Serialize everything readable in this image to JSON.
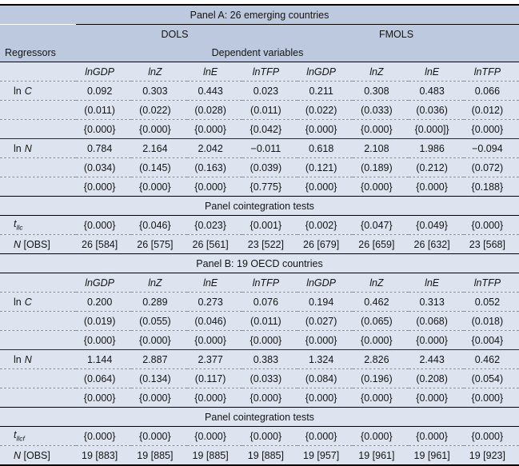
{
  "colors": {
    "header_band": "#bdc9de",
    "row_bg": "#dde3ef",
    "rule": "#000000",
    "dashed": "#8f8f8f",
    "text": "#141414"
  },
  "panelA": {
    "title": "Panel A: 26 emerging countries",
    "methods": [
      "DOLS",
      "FMOLS"
    ],
    "regressors_label": "Regressors",
    "depvars_label": "Dependent variables",
    "columns": [
      "lnGDP",
      "lnZ",
      "lnE",
      "lnTFP",
      "lnGDP",
      "lnZ",
      "lnE",
      "lnTFP"
    ],
    "lnC": {
      "prefix": "ln",
      "symbol": "C",
      "coef": [
        "0.092",
        "0.303",
        "0.443",
        "0.023",
        "0.211",
        "0.308",
        "0.483",
        "0.066"
      ],
      "se": [
        "(0.011)",
        "(0.022)",
        "(0.028)",
        "(0.011)",
        "(0.022)",
        "(0.033)",
        "(0.036)",
        "(0.012)"
      ],
      "p": [
        "{0.000}",
        "{0.000}",
        "{0.000}",
        "{0.042}",
        "{0.000}",
        "{0.000}",
        "{0.000]}",
        "{0.000}"
      ]
    },
    "lnN": {
      "prefix": "ln",
      "symbol": "N",
      "coef": [
        "0.784",
        "2.164",
        "2.042",
        "−0.011",
        "0.618",
        "2.108",
        "1.986",
        "−0.094"
      ],
      "se": [
        "(0.034)",
        "(0.145)",
        "(0.163)",
        "(0.039)",
        "(0.121)",
        "(0.189)",
        "(0.212)",
        "(0.072)"
      ],
      "p": [
        "{0.000}",
        "{0.000}",
        "{0.000}",
        "{0.775}",
        "{0.000}",
        "{0.000}",
        "{0.000}",
        "{0.188}"
      ]
    },
    "coint_title": "Panel cointegration tests",
    "tstat": {
      "base": "t",
      "sub": "llc",
      "values": [
        "{0.000}",
        "{0.046}",
        "{0.023}",
        "{0.001}",
        "{0.002}",
        "{0.047}",
        "{0.049}",
        "{0.000}"
      ]
    },
    "obs": {
      "labelN": "N",
      "labelRest": " [OBS]",
      "values": [
        "26 [584]",
        "26 [575]",
        "26 [561]",
        "23 [522]",
        "26 [679]",
        "26 [659]",
        "26 [632]",
        "23 [568]"
      ]
    }
  },
  "panelB": {
    "title": "Panel B: 19 OECD countries",
    "columns": [
      "lnGDP",
      "lnZ",
      "lnE",
      "lnTFP",
      "lnGDP",
      "lnZ",
      "lnE",
      "lnTFP"
    ],
    "lnC": {
      "prefix": "ln",
      "symbol": "C",
      "coef": [
        "0.200",
        "0.289",
        "0.273",
        "0.076",
        "0.194",
        "0.462",
        "0.313",
        "0.052"
      ],
      "se": [
        "(0.019)",
        "(0.055)",
        "(0.046)",
        "(0.011)",
        "(0.027)",
        "(0.065)",
        "(0.068)",
        "(0.018)"
      ],
      "p": [
        "{0.000}",
        "{0.000}",
        "{0.000}",
        "{0.000}",
        "{0.000}",
        "{0.000}",
        "{0.000}",
        "{0.004}"
      ]
    },
    "lnN": {
      "prefix": "ln",
      "symbol": "N",
      "coef": [
        "1.144",
        "2.887",
        "2.377",
        "0.383",
        "1.324",
        "2.826",
        "2.443",
        "0.462"
      ],
      "se": [
        "(0.064)",
        "(0.134)",
        "(0.117)",
        "(0.033)",
        "(0.084)",
        "(0.196)",
        "(0.208)",
        "(0.054)"
      ],
      "p": [
        "{0.000}",
        "{0.000}",
        "{0.000}",
        "{0.000}",
        "{0.000}",
        "{0.000}",
        "{0.000}",
        "{0.000}"
      ]
    },
    "coint_title": "Panel cointegration tests",
    "tstat": {
      "base": "t",
      "sub": "llcf",
      "values": [
        "{0.000}",
        "{0.000}",
        "{0.000}",
        "{0.000}",
        "{0.000}",
        "{0.000}",
        "{0.000}",
        "{0.000}"
      ]
    },
    "obs": {
      "labelN": "N",
      "labelRest": " [OBS]",
      "values": [
        "19 [883]",
        "19 [885]",
        "19 [885]",
        "19 [885]",
        "19 [957]",
        "19 [961]",
        "19 [961]",
        "19 [923]"
      ]
    }
  }
}
